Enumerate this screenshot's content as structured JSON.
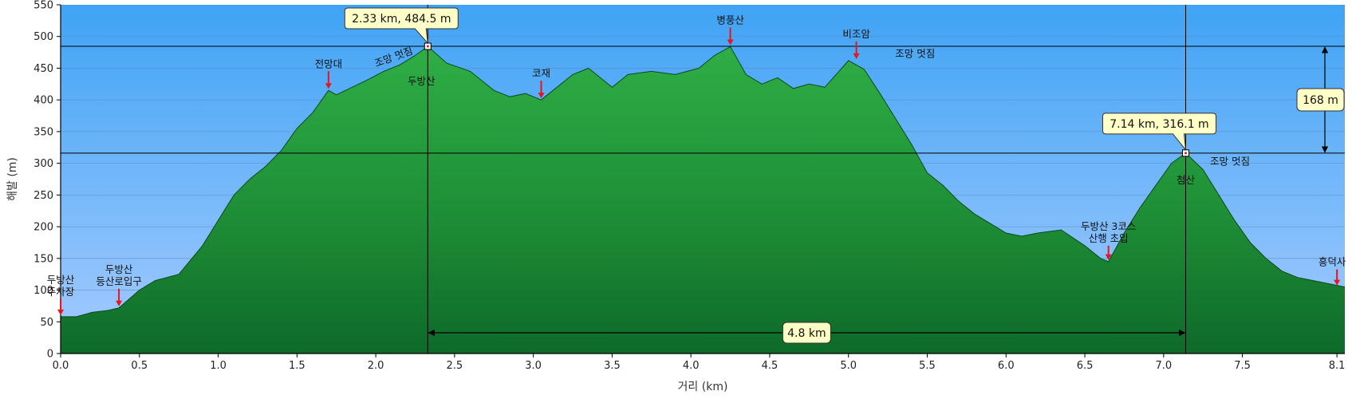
{
  "chart_data": {
    "type": "area",
    "title": "",
    "xlabel": "거리 (km)",
    "ylabel": "해발 (m)",
    "xlim": [
      0,
      8.15
    ],
    "ylim": [
      0,
      550
    ],
    "x_ticks": [
      "0.0",
      "0.5",
      "1.0",
      "1.5",
      "2.0",
      "2.5",
      "3.0",
      "3.5",
      "4.0",
      "4.5",
      "5.0",
      "5.5",
      "6.0",
      "6.5",
      "7.0",
      "7.5",
      "8.1"
    ],
    "y_ticks": [
      "0",
      "50",
      "100",
      "150",
      "200",
      "250",
      "300",
      "350",
      "400",
      "450",
      "500",
      "550"
    ],
    "grid": true,
    "series": [
      {
        "x": [
          0,
          0.1,
          0.2,
          0.3,
          0.37,
          0.5,
          0.6,
          0.75,
          0.9,
          1.0,
          1.1,
          1.2,
          1.3,
          1.4,
          1.5,
          1.6,
          1.7,
          1.75,
          1.85,
          1.95,
          2.05,
          2.15,
          2.25,
          2.33,
          2.45,
          2.6,
          2.75,
          2.85,
          2.95,
          3.05,
          3.15,
          3.25,
          3.35,
          3.5,
          3.6,
          3.75,
          3.9,
          4.05,
          4.15,
          4.25,
          4.35,
          4.45,
          4.55,
          4.65,
          4.75,
          4.85,
          5.0,
          5.1,
          5.2,
          5.3,
          5.4,
          5.5,
          5.6,
          5.7,
          5.8,
          5.9,
          6.0,
          6.1,
          6.2,
          6.35,
          6.5,
          6.6,
          6.65,
          6.75,
          6.85,
          6.95,
          7.05,
          7.14,
          7.25,
          7.35,
          7.45,
          7.55,
          7.65,
          7.75,
          7.85,
          7.95,
          8.05,
          8.15
        ],
        "y": [
          58,
          58,
          65,
          68,
          72,
          100,
          115,
          125,
          170,
          210,
          250,
          275,
          295,
          320,
          355,
          380,
          415,
          408,
          420,
          432,
          445,
          455,
          470,
          484.5,
          458,
          445,
          415,
          405,
          410,
          400,
          420,
          440,
          450,
          420,
          440,
          445,
          440,
          450,
          470,
          484,
          440,
          425,
          435,
          418,
          425,
          420,
          462,
          448,
          410,
          370,
          330,
          285,
          265,
          240,
          220,
          205,
          190,
          185,
          190,
          195,
          170,
          150,
          145,
          190,
          230,
          265,
          300,
          316.1,
          290,
          250,
          210,
          175,
          150,
          130,
          120,
          115,
          110,
          105
        ]
      }
    ],
    "markers": [
      {
        "x": 2.33,
        "y": 484.5,
        "callout": "2.33 km, 484.5 m"
      },
      {
        "x": 7.14,
        "y": 316.1,
        "callout": "7.14 km, 316.1 m"
      }
    ],
    "measurements": {
      "height_diff": "168 m",
      "distance": "4.8 km"
    },
    "annotations": [
      {
        "label": "두방산\n주차장",
        "x": 0.0,
        "y": 58
      },
      {
        "label": "두방산\n등산로입구",
        "x": 0.37,
        "y": 72
      },
      {
        "label": "전망대",
        "x": 1.7,
        "y": 415
      },
      {
        "label": "조망 멋짐",
        "x": 2.05,
        "y": 445,
        "rotate": -20
      },
      {
        "label": "두방산",
        "x": 2.33,
        "y": 484.5
      },
      {
        "label": "코재",
        "x": 3.05,
        "y": 400
      },
      {
        "label": "병풍산",
        "x": 4.25,
        "y": 484
      },
      {
        "label": "비조암",
        "x": 5.05,
        "y": 462
      },
      {
        "label": "조망 멋짐",
        "x": 5.2,
        "y": 450
      },
      {
        "label": "두방산 3코스\n산행 초입",
        "x": 6.65,
        "y": 145
      },
      {
        "label": "첨산",
        "x": 7.14,
        "y": 316.1
      },
      {
        "label": "조망 멋짐",
        "x": 7.35,
        "y": 300
      },
      {
        "label": "흥덕사",
        "x": 8.1,
        "y": 105
      }
    ],
    "colors": {
      "sky_top": "#3fa3f4",
      "sky_bottom": "#a6cbff",
      "area_top": "#2fae46",
      "area_bottom": "#0e6a2a",
      "arrow": "#e8141e",
      "callout_bg": "#ffffc8"
    }
  }
}
